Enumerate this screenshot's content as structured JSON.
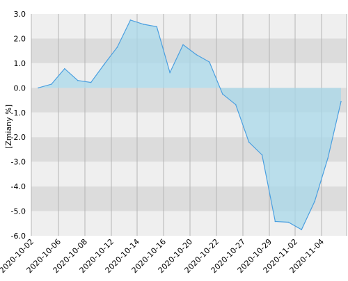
{
  "chart_data": {
    "type": "area",
    "title": "",
    "xlabel": "",
    "ylabel": "[Zmiany %]",
    "ylim": [
      -6.0,
      3.0
    ],
    "yticks": [
      3.0,
      2.0,
      1.0,
      0.0,
      -1.0,
      -2.0,
      -3.0,
      -4.0,
      -5.0,
      -6.0
    ],
    "ytick_labels": [
      "3.0",
      "2.0",
      "1.0",
      "0.0",
      "-1.0",
      "-2.0",
      "-3.0",
      "-4.0",
      "-5.0",
      "-6.0"
    ],
    "xtick_labels": [
      "2020-10-02",
      "2020-10-06",
      "2020-10-08",
      "2020-10-12",
      "2020-10-14",
      "2020-10-16",
      "2020-10-20",
      "2020-10-22",
      "2020-10-27",
      "2020-10-29",
      "2020-11-02",
      "2020-11-04"
    ],
    "grid": true,
    "colors": {
      "band_light": "#efefef",
      "band_dark": "#dcdcdc",
      "gridline": "#b4b4b4",
      "fill": "#a8d8ea",
      "fill_opacity": 0.75,
      "line": "#4a9fe0"
    },
    "series": [
      {
        "values": [
          0.0,
          0.15,
          0.78,
          0.3,
          0.22,
          0.95,
          1.65,
          2.75,
          2.58,
          2.48,
          0.62,
          1.75,
          1.35,
          1.05,
          -0.25,
          -0.68,
          -2.2,
          -2.72,
          -5.42,
          -5.45,
          -5.75,
          -4.6,
          -2.85,
          -0.55
        ]
      }
    ]
  }
}
